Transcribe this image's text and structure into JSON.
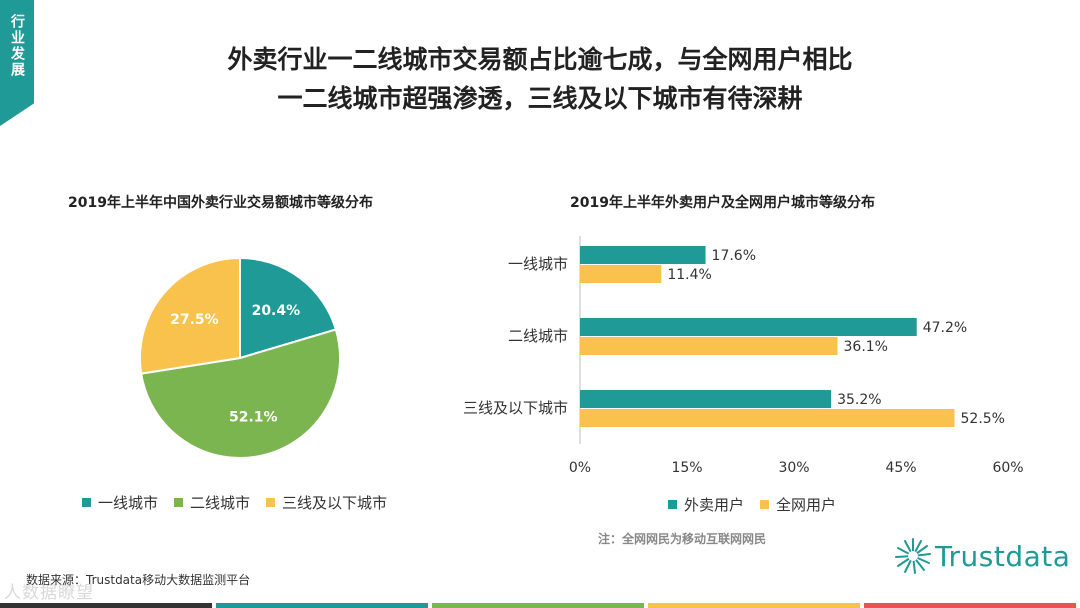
{
  "side_tab": {
    "text": "行业发展"
  },
  "title": {
    "line1": "外卖行业一二线城市交易额占比逾七成，与全网用户相比",
    "line2": "一二线城市超强渗透，三线及以下城市有待深耕"
  },
  "colors": {
    "teal": "#1f9a96",
    "green": "#7bb54f",
    "yellow": "#f9c24c",
    "red": "#e8574e",
    "dark": "#333333"
  },
  "chart_data": [
    {
      "type": "pie",
      "title": "2019年上半年中国外卖行业交易额城市等级分布",
      "slices": [
        {
          "label": "一线城市",
          "value": 20.4,
          "value_label": "20.4%",
          "color": "#1f9a96"
        },
        {
          "label": "二线城市",
          "value": 52.1,
          "value_label": "52.1%",
          "color": "#7bb54f"
        },
        {
          "label": "三线及以下城市",
          "value": 27.5,
          "value_label": "27.5%",
          "color": "#f9c24c"
        }
      ],
      "legend_position": "bottom"
    },
    {
      "type": "bar",
      "orientation": "horizontal",
      "title": "2019年上半年外卖用户及全网用户城市等级分布",
      "categories": [
        "一线城市",
        "二线城市",
        "三线及以下城市"
      ],
      "series": [
        {
          "name": "外卖用户",
          "values": [
            17.6,
            47.2,
            35.2
          ],
          "labels": [
            "17.6%",
            "47.2%",
            "35.2%"
          ],
          "color": "#1f9a96"
        },
        {
          "name": "全网用户",
          "values": [
            11.4,
            36.1,
            52.5
          ],
          "labels": [
            "11.4%",
            "36.1%",
            "52.5%"
          ],
          "color": "#f9c24c"
        }
      ],
      "xlim": [
        0,
        60
      ],
      "xticks": [
        0,
        15,
        30,
        45,
        60
      ],
      "xtick_labels": [
        "0%",
        "15%",
        "30%",
        "45%",
        "60%"
      ],
      "grid": false,
      "legend_position": "bottom"
    }
  ],
  "note": "注：全网网民为移动互联网网民",
  "source": "数据来源：Trustdata移动大数据监测平台",
  "watermark": "人数据瞭望",
  "logo": {
    "text": "Trustdata"
  }
}
